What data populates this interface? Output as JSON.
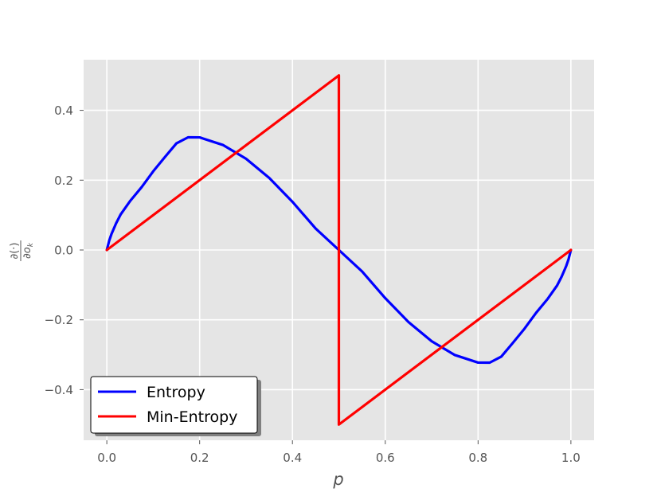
{
  "chart_data": {
    "type": "line",
    "title": "",
    "xlabel": "p",
    "ylabel": "∂(·)/∂o_k",
    "ylabel_parts": {
      "numerator": "∂(·)",
      "denominator": "∂o",
      "subscript": "k"
    },
    "xlim": [
      -0.05,
      1.05
    ],
    "ylim": [
      -0.545,
      0.545
    ],
    "xticks": [
      0.0,
      0.2,
      0.4,
      0.6,
      0.8,
      1.0
    ],
    "xtick_labels": [
      "0.0",
      "0.2",
      "0.4",
      "0.6",
      "0.8",
      "1.0"
    ],
    "yticks": [
      0.4,
      0.2,
      0.0,
      -0.2,
      -0.4
    ],
    "ytick_labels": [
      "0.4",
      "0.2",
      "0.0",
      "−0.2",
      "−0.4"
    ],
    "grid": true,
    "background_color": "#e5e5e5",
    "legend": {
      "placement": "lower-left"
    },
    "series": [
      {
        "name": "Entropy",
        "color": "#0000ff",
        "x": [
          0.0,
          0.005,
          0.01,
          0.02,
          0.03,
          0.05,
          0.075,
          0.1,
          0.125,
          0.15,
          0.175,
          0.2,
          0.25,
          0.3,
          0.35,
          0.4,
          0.45,
          0.5,
          0.55,
          0.6,
          0.65,
          0.7,
          0.75,
          0.8,
          0.825,
          0.85,
          0.875,
          0.9,
          0.925,
          0.95,
          0.97,
          0.98,
          0.99,
          0.995,
          1.0
        ],
        "y": [
          0.0,
          0.0263,
          0.0455,
          0.0763,
          0.1023,
          0.1399,
          0.18,
          0.2254,
          0.2659,
          0.3054,
          0.3227,
          0.3225,
          0.3009,
          0.2614,
          0.2063,
          0.138,
          0.0614,
          0.0,
          -0.0614,
          -0.138,
          -0.2063,
          -0.2614,
          -0.3009,
          -0.3225,
          -0.3227,
          -0.3054,
          -0.2659,
          -0.2254,
          -0.18,
          -0.1399,
          -0.1023,
          -0.0763,
          -0.0455,
          -0.0263,
          0.0
        ]
      },
      {
        "name": "Min-Entropy",
        "color": "#ff0000",
        "x": [
          0.0,
          0.5,
          0.5,
          1.0
        ],
        "y": [
          0.0,
          0.5,
          -0.5,
          0.0
        ]
      }
    ]
  }
}
